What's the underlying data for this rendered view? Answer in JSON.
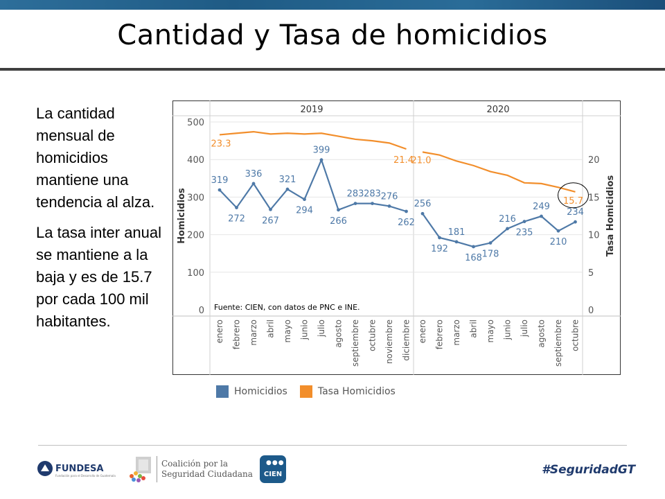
{
  "slide": {
    "title": "Cantidad y Tasa de homicidios",
    "paragraphs": [
      "La cantidad mensual de homicidios mantiene una tendencia al alza.",
      "La tasa inter anual se mantiene a la baja y es de 15.7 por cada 100 mil habitantes."
    ],
    "hashtag": "#SeguridadGT"
  },
  "logos": {
    "fundesa": "FUNDESA",
    "fundesa_sub": "Fundación para el Desarrollo de Guatemala",
    "coalicion_line1": "Coalición por la",
    "coalicion_line2": "Seguridad Ciudadana",
    "cien": "CIEN"
  },
  "colors": {
    "homicidios": "#4e79a7",
    "tasa": "#f28e2b",
    "topbar": "#2a6590",
    "grid": "#e6e6e6",
    "axis_text": "#555555"
  },
  "chart_data": {
    "type": "line",
    "source": "Fuente: CIEN, con datos de PNC e INE.",
    "ylabel_left": "Homicidios",
    "ylabel_right": "Tasa Homicidios",
    "ylim_left": [
      0,
      500
    ],
    "yticks_left": [
      "0",
      "100",
      "200",
      "300",
      "400",
      "500"
    ],
    "ylim_right": [
      0,
      25
    ],
    "yticks_right": [
      "0",
      "5",
      "10",
      "15",
      "20"
    ],
    "panels": [
      {
        "year": "2019",
        "months": [
          "enero",
          "febrero",
          "marzo",
          "abril",
          "mayo",
          "junio",
          "julio",
          "agosto",
          "septiembre",
          "octubre",
          "noviembre",
          "diciembre"
        ],
        "homicidios": [
          319,
          272,
          336,
          267,
          321,
          294,
          399,
          266,
          283,
          283,
          276,
          262
        ],
        "tasa": [
          23.3,
          23.5,
          23.7,
          23.4,
          23.5,
          23.4,
          23.5,
          23.1,
          22.7,
          22.5,
          22.2,
          21.4
        ]
      },
      {
        "year": "2020",
        "months": [
          "enero",
          "febrero",
          "marzo",
          "abril",
          "mayo",
          "junio",
          "julio",
          "agosto",
          "septiembre",
          "octubre"
        ],
        "homicidios": [
          256,
          192,
          181,
          168,
          178,
          216,
          235,
          249,
          210,
          234
        ],
        "tasa": [
          21.0,
          20.6,
          19.8,
          19.2,
          18.4,
          17.9,
          16.9,
          16.8,
          16.3,
          15.7
        ]
      }
    ],
    "labeled_tasa_points": [
      {
        "panel": 0,
        "index": 0,
        "label": "23.3"
      },
      {
        "panel": 0,
        "index": 11,
        "label": "21.4"
      },
      {
        "panel": 1,
        "index": 0,
        "label": "21.0"
      },
      {
        "panel": 1,
        "index": 9,
        "label": "15.7"
      }
    ],
    "legend": [
      {
        "name": "Homicidios"
      },
      {
        "name": "Tasa Homicidios"
      }
    ]
  }
}
